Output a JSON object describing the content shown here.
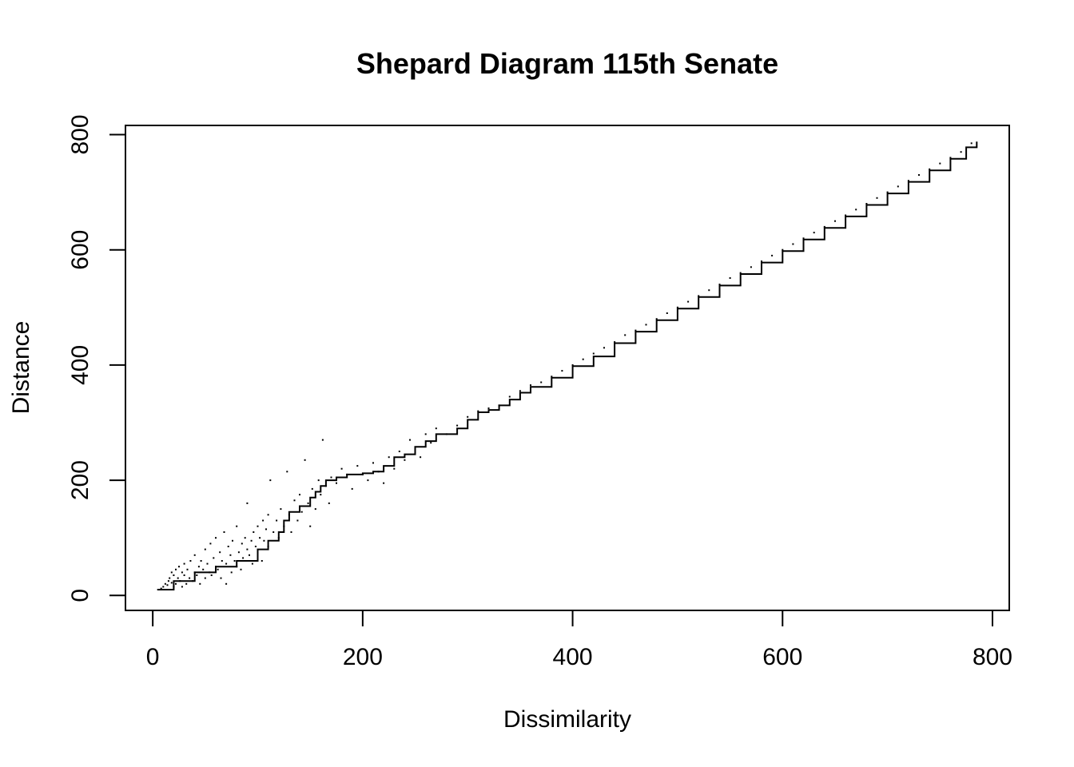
{
  "chart_data": {
    "type": "scatter",
    "title": "Shepard Diagram 115th Senate",
    "xlabel": "Dissimilarity",
    "ylabel": "Distance",
    "xlim": [
      -26,
      816
    ],
    "ylim": [
      -26,
      816
    ],
    "xticks": [
      0,
      200,
      400,
      600,
      800
    ],
    "yticks": [
      0,
      200,
      400,
      600,
      800
    ],
    "xtick_labels": [
      "0",
      "200",
      "400",
      "600",
      "800"
    ],
    "ytick_labels": [
      "0",
      "200",
      "400",
      "600",
      "800"
    ],
    "grid": false,
    "legend": "none",
    "point_color": "#000000",
    "series": [
      {
        "kind": "points",
        "description_note": "",
        "x": [
          5,
          8,
          10,
          12,
          14,
          15,
          16,
          18,
          18,
          20,
          20,
          22,
          22,
          24,
          25,
          26,
          28,
          28,
          30,
          30,
          32,
          33,
          35,
          36,
          38,
          40,
          40,
          42,
          44,
          45,
          46,
          48,
          50,
          50,
          52,
          54,
          55,
          56,
          58,
          60,
          60,
          62,
          64,
          65,
          66,
          68,
          70,
          70,
          72,
          74,
          75,
          76,
          78,
          80,
          80,
          82,
          84,
          85,
          86,
          88,
          90,
          90,
          92,
          94,
          95,
          96,
          98,
          100,
          100,
          102,
          104,
          105,
          106,
          108,
          110,
          110,
          112,
          115,
          118,
          120,
          122,
          125,
          128,
          130,
          132,
          135,
          138,
          140,
          142,
          145,
          148,
          150,
          152,
          155,
          158,
          160,
          162,
          165,
          168,
          170,
          175,
          180,
          185,
          190,
          195,
          200,
          205,
          210,
          215,
          220,
          225,
          230,
          235,
          240,
          245,
          250,
          255,
          260,
          265,
          270,
          280,
          290,
          300,
          310,
          320,
          330,
          340,
          350,
          360,
          370,
          380,
          390,
          400,
          410,
          420,
          430,
          440,
          450,
          460,
          470,
          480,
          490,
          500,
          510,
          520,
          530,
          540,
          550,
          560,
          570,
          580,
          590,
          600,
          610,
          620,
          630,
          640,
          650,
          660,
          670,
          680,
          690,
          700,
          710,
          720,
          730,
          740,
          750,
          760,
          770,
          780
        ],
        "y": [
          10,
          12,
          15,
          20,
          18,
          25,
          30,
          22,
          40,
          15,
          35,
          45,
          20,
          30,
          50,
          25,
          40,
          15,
          35,
          55,
          20,
          45,
          30,
          60,
          25,
          40,
          70,
          35,
          50,
          20,
          60,
          45,
          30,
          80,
          55,
          40,
          90,
          35,
          65,
          50,
          100,
          45,
          75,
          30,
          60,
          110,
          55,
          20,
          85,
          70,
          40,
          95,
          60,
          50,
          120,
          75,
          45,
          90,
          65,
          100,
          80,
          160,
          70,
          95,
          55,
          110,
          85,
          120,
          75,
          100,
          60,
          130,
          95,
          115,
          140,
          85,
          200,
          110,
          130,
          100,
          150,
          120,
          215,
          140,
          110,
          165,
          130,
          175,
          145,
          235,
          160,
          120,
          185,
          150,
          200,
          175,
          270,
          190,
          160,
          205,
          195,
          220,
          210,
          185,
          225,
          210,
          200,
          230,
          215,
          195,
          240,
          220,
          250,
          235,
          270,
          255,
          240,
          280,
          265,
          290,
          280,
          295,
          310,
          320,
          325,
          330,
          345,
          355,
          365,
          370,
          380,
          390,
          400,
          410,
          420,
          430,
          440,
          452,
          460,
          470,
          480,
          490,
          500,
          510,
          520,
          530,
          540,
          551,
          560,
          570,
          580,
          590,
          600,
          610,
          620,
          630,
          640,
          650,
          660,
          670,
          680,
          690,
          700,
          710,
          720,
          730,
          740,
          750,
          760,
          770,
          785
        ]
      },
      {
        "kind": "step",
        "x": [
          5,
          20,
          40,
          60,
          80,
          100,
          110,
          120,
          125,
          130,
          140,
          150,
          155,
          160,
          165,
          175,
          185,
          200,
          210,
          220,
          230,
          240,
          250,
          260,
          270,
          290,
          300,
          310,
          320,
          330,
          340,
          350,
          360,
          380,
          400,
          420,
          440,
          460,
          480,
          500,
          520,
          540,
          560,
          580,
          600,
          620,
          640,
          660,
          680,
          700,
          720,
          740,
          760,
          775,
          785
        ],
        "y": [
          10,
          25,
          40,
          50,
          60,
          80,
          95,
          110,
          130,
          145,
          155,
          170,
          180,
          190,
          200,
          205,
          210,
          212,
          215,
          225,
          240,
          245,
          258,
          268,
          280,
          290,
          305,
          318,
          322,
          330,
          340,
          352,
          362,
          378,
          398,
          415,
          438,
          458,
          478,
          498,
          518,
          538,
          558,
          578,
          598,
          618,
          638,
          658,
          678,
          698,
          718,
          738,
          758,
          778,
          788
        ]
      }
    ]
  }
}
